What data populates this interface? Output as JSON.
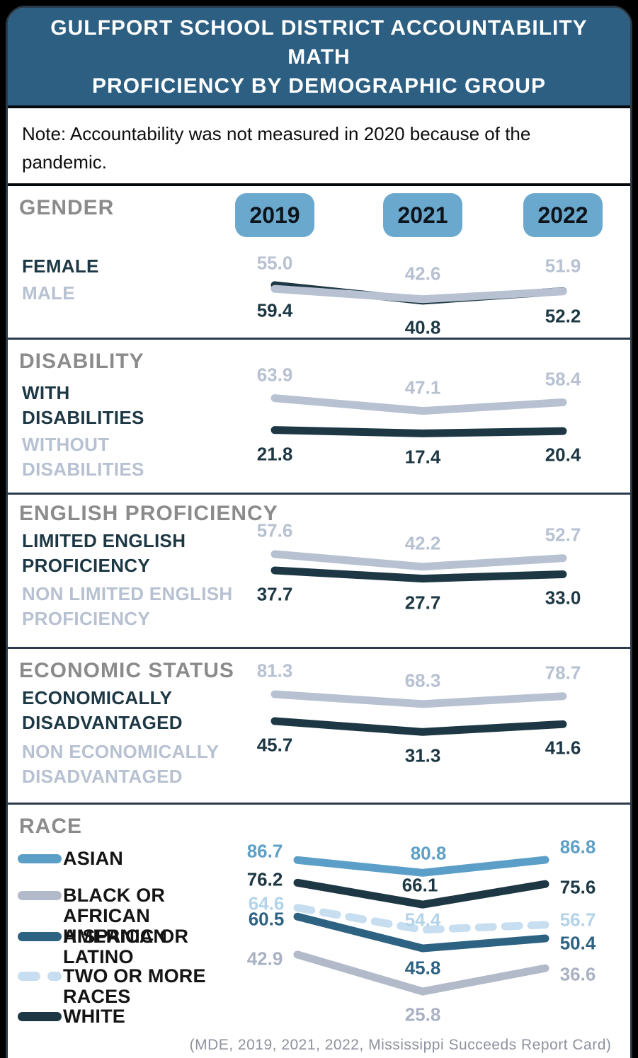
{
  "header": {
    "title_lines": [
      "GULFPORT SCHOOL DISTRICT ACCOUNTABILITY MATH",
      "PROFICIENCY BY DEMOGRAPHIC GROUP"
    ],
    "bg": "#2c5f81",
    "text_color": "#ffffff"
  },
  "note": {
    "text": "Note: Accountability was not measured in 2020 because of the pandemic."
  },
  "years": [
    "2019",
    "2021",
    "2022"
  ],
  "year_badge": {
    "bg": "#6aa9cd",
    "text_color": "#0c141c"
  },
  "colors": {
    "dark_navy": "#1d3844",
    "light_gray_blue": "#b7c1d1",
    "section_heading": "#8b8b8b",
    "card_border": "#2b3a4a",
    "page_bg": "#000000"
  },
  "sections": [
    {
      "heading": "GENDER",
      "groups": [
        {
          "label": "FEMALE",
          "tone": "dark"
        },
        {
          "label": "MALE",
          "tone": "gray"
        }
      ]
    },
    {
      "heading": "DISABILITY",
      "groups": [
        {
          "label": "WITH\nDISABILITIES",
          "tone": "dark"
        },
        {
          "label": "WITHOUT\nDISABILITIES",
          "tone": "gray"
        }
      ]
    },
    {
      "heading": "ENGLISH PROFICIENCY",
      "groups": [
        {
          "label": "LIMITED ENGLISH\nPROFICIENCY",
          "tone": "dark"
        },
        {
          "label": "NON LIMITED ENGLISH\nPROFICIENCY",
          "tone": "gray"
        }
      ]
    },
    {
      "heading": "ECONOMIC STATUS",
      "groups": [
        {
          "label": "ECONOMICALLY\nDISADVANTAGED",
          "tone": "dark"
        },
        {
          "label": "NON ECONOMICALLY\nDISADVANTAGED",
          "tone": "gray"
        }
      ]
    },
    {
      "heading": "RACE",
      "legend": [
        "ASIAN",
        "BLACK OR AFRICAN AMERICAN",
        "HISPANIC OR LATINO",
        "TWO OR MORE RACES",
        "WHITE"
      ]
    }
  ],
  "source": "(MDE, 2019, 2021, 2022, Mississippi Succeeds Report Card)",
  "chart_data": [
    {
      "type": "line",
      "title": "GENDER",
      "categories": [
        "2019",
        "2021",
        "2022"
      ],
      "ylim": [
        0,
        100
      ],
      "legend_position": "left",
      "grid": false,
      "series": [
        {
          "name": "FEMALE",
          "values": [
            59.4,
            40.8,
            52.2
          ],
          "color": "#1d3844",
          "label_color": "#1d3844",
          "label_side": "below"
        },
        {
          "name": "MALE",
          "values": [
            55.0,
            42.6,
            51.9
          ],
          "color": "#b7c1d1",
          "label_color": "#b7c1d1",
          "label_side": "above"
        }
      ]
    },
    {
      "type": "line",
      "title": "DISABILITY",
      "categories": [
        "2019",
        "2021",
        "2022"
      ],
      "ylim": [
        0,
        100
      ],
      "legend_position": "left",
      "grid": false,
      "series": [
        {
          "name": "WITH DISABILITIES",
          "values": [
            21.8,
            17.4,
            20.4
          ],
          "color": "#1d3844",
          "label_color": "#1d3844",
          "label_side": "below"
        },
        {
          "name": "WITHOUT DISABILITIES",
          "values": [
            63.9,
            47.1,
            58.4
          ],
          "color": "#b7c1d1",
          "label_color": "#b7c1d1",
          "label_side": "above"
        }
      ]
    },
    {
      "type": "line",
      "title": "ENGLISH PROFICIENCY",
      "categories": [
        "2019",
        "2021",
        "2022"
      ],
      "ylim": [
        0,
        100
      ],
      "legend_position": "left",
      "grid": false,
      "series": [
        {
          "name": "LIMITED ENGLISH PROFICIENCY",
          "values": [
            37.7,
            27.7,
            33.0
          ],
          "color": "#1d3844",
          "label_color": "#1d3844",
          "label_side": "below"
        },
        {
          "name": "NON LIMITED ENGLISH PROFICIENCY",
          "values": [
            57.6,
            42.2,
            52.7
          ],
          "color": "#b7c1d1",
          "label_color": "#b7c1d1",
          "label_side": "above"
        }
      ]
    },
    {
      "type": "line",
      "title": "ECONOMIC STATUS",
      "categories": [
        "2019",
        "2021",
        "2022"
      ],
      "ylim": [
        0,
        100
      ],
      "legend_position": "left",
      "grid": false,
      "series": [
        {
          "name": "ECONOMICALLY DISADVANTAGED",
          "values": [
            45.7,
            31.3,
            41.6
          ],
          "color": "#1d3844",
          "label_color": "#1d3844",
          "label_side": "below"
        },
        {
          "name": "NON ECONOMICALLY DISADVANTAGED",
          "values": [
            81.3,
            68.3,
            78.7
          ],
          "color": "#b7c1d1",
          "label_color": "#b7c1d1",
          "label_side": "above"
        }
      ]
    },
    {
      "type": "line",
      "title": "RACE",
      "categories": [
        "2019",
        "2021",
        "2022"
      ],
      "ylim": [
        20,
        95
      ],
      "legend_position": "left",
      "grid": false,
      "series": [
        {
          "name": "ASIAN",
          "values": [
            86.7,
            80.8,
            86.8
          ],
          "color": "#5b9fc8",
          "label_color": "#5d9fc7"
        },
        {
          "name": "BLACK OR AFRICAN AMERICAN",
          "values": [
            42.9,
            25.8,
            36.6
          ],
          "color": "#b2b9c9",
          "label_color": "#a9b1c3"
        },
        {
          "name": "HISPANIC OR LATINO",
          "values": [
            60.5,
            45.8,
            50.4
          ],
          "color": "#2e6283",
          "label_color": "#2e6283"
        },
        {
          "name": "TWO OR MORE RACES",
          "values": [
            64.6,
            54.4,
            56.7
          ],
          "color": "#c7def0",
          "label_color": "#b3d3e8",
          "dash": true
        },
        {
          "name": "WHITE",
          "values": [
            76.2,
            66.1,
            75.6
          ],
          "color": "#1d3744",
          "label_color": "#1d3744"
        }
      ]
    }
  ]
}
